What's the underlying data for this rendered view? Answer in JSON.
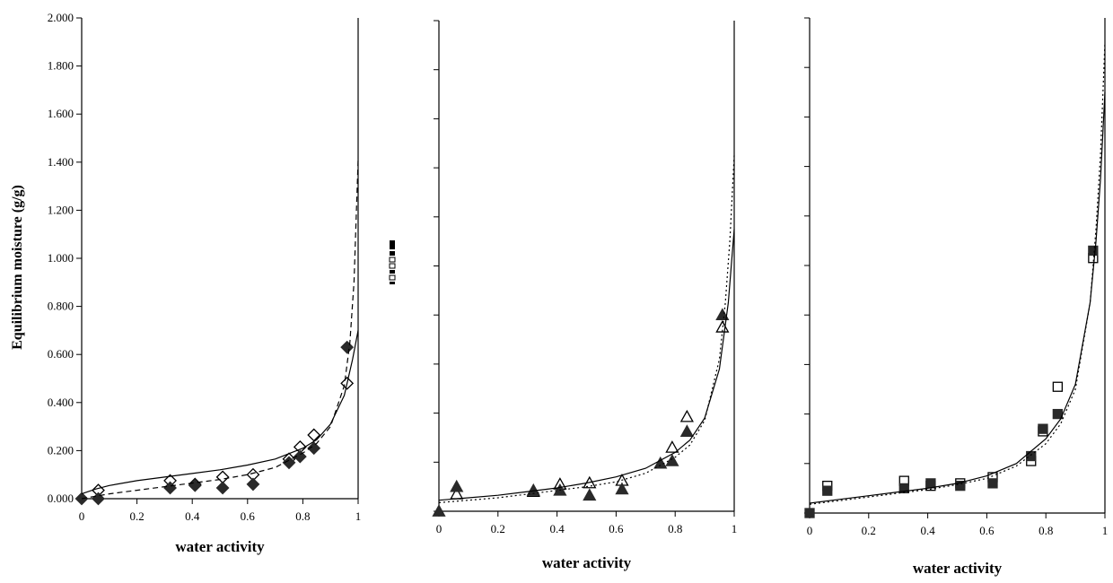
{
  "colors": {
    "ink": "#000000",
    "marker_dark": "#2a2a2a",
    "paper": "#ffffff"
  },
  "chart_data": [
    {
      "type": "scatter",
      "title": "",
      "xlabel": "water activity",
      "ylabel": "Equilibrium moisture (g/g)",
      "xlim": [
        0,
        1
      ],
      "ylim": [
        0,
        2.0
      ],
      "xticks": [
        "0",
        "0.2",
        "0.4",
        "0.6",
        "0.8",
        "1"
      ],
      "yticks": [
        "0.000",
        "0.200",
        "0.400",
        "0.600",
        "0.800",
        "1.000",
        "1.200",
        "1.400",
        "1.600",
        "1.800",
        "2.000"
      ],
      "grid": false,
      "series": [
        {
          "marker": "diamond-open",
          "x": [
            0.06,
            0.32,
            0.41,
            0.51,
            0.62,
            0.75,
            0.79,
            0.84,
            0.96
          ],
          "y": [
            0.035,
            0.075,
            0.06,
            0.09,
            0.1,
            0.165,
            0.215,
            0.265,
            0.48
          ]
        },
        {
          "marker": "diamond-filled",
          "x": [
            0.0,
            0.06,
            0.32,
            0.41,
            0.51,
            0.62,
            0.75,
            0.79,
            0.84,
            0.96
          ],
          "y": [
            0.0,
            0.0,
            0.045,
            0.055,
            0.045,
            0.06,
            0.15,
            0.175,
            0.21,
            0.63
          ]
        },
        {
          "line": "solid",
          "x": [
            0.0,
            0.05,
            0.1,
            0.2,
            0.3,
            0.4,
            0.5,
            0.6,
            0.7,
            0.8,
            0.85,
            0.9,
            0.95,
            0.98,
            1.0
          ],
          "y": [
            0.02,
            0.04,
            0.055,
            0.075,
            0.09,
            0.105,
            0.12,
            0.14,
            0.165,
            0.21,
            0.245,
            0.31,
            0.43,
            0.58,
            0.7
          ]
        },
        {
          "line": "dashed",
          "x": [
            0.0,
            0.05,
            0.1,
            0.2,
            0.3,
            0.4,
            0.5,
            0.6,
            0.7,
            0.8,
            0.85,
            0.9,
            0.95,
            0.97,
            0.985,
            1.0
          ],
          "y": [
            0.0,
            0.01,
            0.02,
            0.035,
            0.05,
            0.065,
            0.08,
            0.1,
            0.13,
            0.19,
            0.23,
            0.3,
            0.47,
            0.65,
            0.9,
            1.41
          ]
        }
      ]
    },
    {
      "type": "scatter",
      "title": "",
      "xlabel": "water activity",
      "ylabel": "",
      "xlim": [
        0,
        1
      ],
      "ylim": [
        0,
        2.0
      ],
      "xticks": [
        "0",
        "0.2",
        "0.4",
        "0.6",
        "0.8",
        "1"
      ],
      "yticks": [],
      "grid": false,
      "series": [
        {
          "marker": "triangle-open",
          "x": [
            0.06,
            0.32,
            0.41,
            0.51,
            0.62,
            0.79,
            0.84,
            0.96
          ],
          "y": [
            0.07,
            0.08,
            0.11,
            0.115,
            0.125,
            0.26,
            0.385,
            0.75
          ]
        },
        {
          "marker": "triangle-filled",
          "x": [
            0.0,
            0.06,
            0.32,
            0.41,
            0.51,
            0.62,
            0.75,
            0.79,
            0.84,
            0.96
          ],
          "y": [
            0.0,
            0.1,
            0.085,
            0.085,
            0.065,
            0.09,
            0.195,
            0.205,
            0.325,
            0.8
          ]
        },
        {
          "line": "solid",
          "x": [
            0.0,
            0.1,
            0.2,
            0.3,
            0.4,
            0.5,
            0.6,
            0.7,
            0.8,
            0.85,
            0.9,
            0.95,
            0.98,
            1.0
          ],
          "y": [
            0.045,
            0.055,
            0.065,
            0.08,
            0.095,
            0.115,
            0.14,
            0.175,
            0.24,
            0.29,
            0.38,
            0.58,
            0.85,
            1.15
          ]
        },
        {
          "line": "dotted",
          "x": [
            0.0,
            0.1,
            0.2,
            0.3,
            0.4,
            0.5,
            0.6,
            0.7,
            0.8,
            0.85,
            0.9,
            0.95,
            0.97,
            0.985,
            1.0
          ],
          "y": [
            0.035,
            0.045,
            0.055,
            0.07,
            0.085,
            0.1,
            0.12,
            0.155,
            0.22,
            0.27,
            0.37,
            0.62,
            0.85,
            1.1,
            1.45
          ]
        }
      ]
    },
    {
      "type": "scatter",
      "title": "",
      "xlabel": "water activity",
      "ylabel": "",
      "xlim": [
        0,
        1
      ],
      "ylim": [
        0,
        2.0
      ],
      "xticks": [
        "0",
        "0.2",
        "0.4",
        "0.6",
        "0.8",
        "1"
      ],
      "yticks": [],
      "grid": false,
      "series": [
        {
          "marker": "square-open",
          "x": [
            0.06,
            0.32,
            0.41,
            0.51,
            0.62,
            0.75,
            0.79,
            0.84,
            0.96
          ],
          "y": [
            0.11,
            0.13,
            0.11,
            0.12,
            0.145,
            0.21,
            0.33,
            0.51,
            1.03
          ]
        },
        {
          "marker": "square-filled",
          "x": [
            0.0,
            0.06,
            0.32,
            0.41,
            0.51,
            0.62,
            0.75,
            0.79,
            0.84,
            0.96
          ],
          "y": [
            0.0,
            0.09,
            0.1,
            0.12,
            0.11,
            0.12,
            0.23,
            0.34,
            0.4,
            1.06
          ]
        },
        {
          "line": "solid",
          "x": [
            0.0,
            0.1,
            0.2,
            0.3,
            0.4,
            0.5,
            0.6,
            0.7,
            0.8,
            0.85,
            0.9,
            0.95,
            0.97,
            0.985,
            1.0
          ],
          "y": [
            0.04,
            0.055,
            0.07,
            0.085,
            0.1,
            0.12,
            0.15,
            0.2,
            0.3,
            0.38,
            0.52,
            0.85,
            1.1,
            1.35,
            1.7
          ]
        },
        {
          "line": "dotted",
          "x": [
            0.0,
            0.1,
            0.2,
            0.3,
            0.4,
            0.5,
            0.6,
            0.7,
            0.8,
            0.85,
            0.9,
            0.95,
            0.97,
            0.985,
            1.0
          ],
          "y": [
            0.035,
            0.05,
            0.065,
            0.08,
            0.095,
            0.115,
            0.14,
            0.19,
            0.28,
            0.36,
            0.5,
            0.85,
            1.15,
            1.45,
            1.9
          ]
        }
      ]
    }
  ]
}
